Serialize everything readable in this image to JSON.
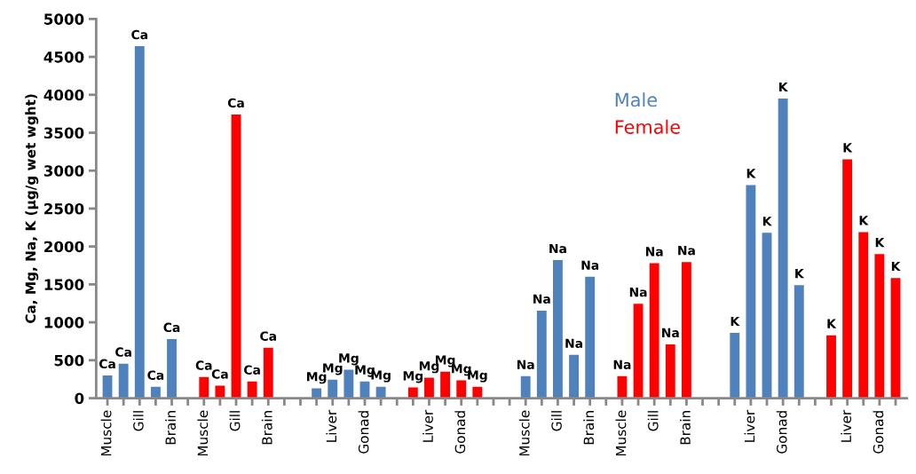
{
  "chart_data": {
    "type": "bar",
    "ylabel": "Ca, Mg, Na, K (µg/g wet wght)",
    "categories": [
      "Muscle",
      null,
      "Gill",
      null,
      "Brain",
      null,
      "Muscle",
      null,
      "Gill",
      null,
      "Brain",
      null,
      null,
      null,
      "Liver",
      null,
      "Gonad",
      null,
      null,
      null,
      "Liver",
      null,
      "Gonad",
      null,
      null,
      null,
      "Muscle",
      null,
      "Gill",
      null,
      "Brain",
      null,
      "Muscle",
      null,
      "Gill",
      null,
      "Brain",
      null,
      null,
      null,
      "Liver",
      null,
      "Gonad",
      null,
      null,
      null,
      "Liver",
      null,
      "Gonad",
      null
    ],
    "series": [
      {
        "name": "Male",
        "color": "#4f81bd",
        "values": [
          300,
          455,
          4640,
          150,
          780,
          null,
          null,
          null,
          null,
          null,
          null,
          null,
          null,
          130,
          245,
          375,
          220,
          150,
          null,
          null,
          null,
          null,
          null,
          null,
          null,
          null,
          290,
          1155,
          1820,
          570,
          1600,
          null,
          null,
          null,
          null,
          null,
          null,
          null,
          null,
          860,
          2810,
          2180,
          3950,
          1490,
          null,
          null,
          null,
          null,
          null,
          null
        ],
        "value_labels": [
          "Ca",
          "Ca",
          "Ca",
          "Ca",
          "Ca",
          null,
          null,
          null,
          null,
          null,
          null,
          null,
          null,
          "Mg",
          "Mg",
          "Mg",
          "Mg",
          "Mg",
          null,
          null,
          null,
          null,
          null,
          null,
          null,
          null,
          "Na",
          "Na",
          "Na",
          "Na",
          "Na",
          null,
          null,
          null,
          null,
          null,
          null,
          null,
          null,
          "K",
          "K",
          "K",
          "K",
          "K",
          null,
          null,
          null,
          null,
          null,
          null
        ]
      },
      {
        "name": "Female",
        "color": "#ff0000",
        "values": [
          null,
          null,
          null,
          null,
          null,
          null,
          280,
          165,
          3740,
          220,
          665,
          null,
          null,
          null,
          null,
          null,
          null,
          null,
          null,
          140,
          270,
          350,
          235,
          150,
          null,
          null,
          null,
          null,
          null,
          null,
          null,
          null,
          290,
          1245,
          1780,
          710,
          1795,
          null,
          null,
          null,
          null,
          null,
          null,
          null,
          null,
          830,
          3150,
          2190,
          1900,
          1585
        ],
        "value_labels": [
          null,
          null,
          null,
          null,
          null,
          null,
          "Ca",
          "Ca",
          "Ca",
          "Ca",
          "Ca",
          null,
          null,
          null,
          null,
          null,
          null,
          null,
          null,
          "Mg",
          "Mg",
          "Mg",
          "Mg",
          "Mg",
          null,
          null,
          null,
          null,
          null,
          null,
          null,
          null,
          "Na",
          "Na",
          "Na",
          "Na",
          "Na",
          null,
          null,
          null,
          null,
          null,
          null,
          null,
          null,
          "K",
          "K",
          "K",
          "K",
          "K"
        ]
      }
    ],
    "ylim": [
      0,
      5000
    ],
    "yticks": [
      0,
      500,
      1000,
      1500,
      2000,
      2500,
      3000,
      3500,
      4000,
      4500,
      5000
    ],
    "grid": false,
    "legend": "top"
  }
}
